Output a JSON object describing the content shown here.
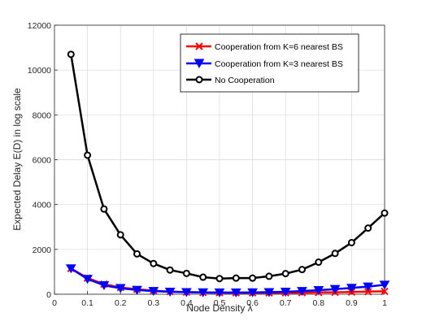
{
  "chart_data": {
    "type": "line",
    "xlabel": "Node Density λ",
    "ylabel": "Expected Delay E(D) in log scale",
    "xlim": [
      0,
      1
    ],
    "ylim": [
      0,
      12000
    ],
    "grid": true,
    "legend_position": "top-right",
    "x_ticks": [
      "0",
      "0.1",
      "0.2",
      "0.3",
      "0.4",
      "0.5",
      "0.6",
      "0.7",
      "0.8",
      "0.9",
      "1"
    ],
    "y_ticks": [
      "0",
      "2000",
      "4000",
      "6000",
      "8000",
      "10000",
      "12000"
    ],
    "x": [
      0.05,
      0.1,
      0.15,
      0.2,
      0.25,
      0.3,
      0.35,
      0.4,
      0.45,
      0.5,
      0.55,
      0.6,
      0.65,
      0.7,
      0.75,
      0.8,
      0.85,
      0.9,
      0.95,
      1.0
    ],
    "series": [
      {
        "name": "Cooperation from K=6 nearest BS",
        "color": "#ff0000",
        "marker": "x",
        "values": [
          1150,
          720,
          450,
          300,
          220,
          160,
          120,
          95,
          80,
          70,
          65,
          62,
          62,
          65,
          70,
          78,
          88,
          100,
          115,
          130
        ]
      },
      {
        "name": "Cooperation from K=3 nearest BS",
        "color": "#0000ff",
        "marker": "triangle-down",
        "values": [
          1150,
          680,
          400,
          270,
          190,
          140,
          110,
          90,
          80,
          75,
          75,
          80,
          90,
          110,
          140,
          180,
          230,
          280,
          340,
          420
        ]
      },
      {
        "name": "No Cooperation",
        "color": "#000000",
        "marker": "circle",
        "values": [
          10700,
          6200,
          3800,
          2650,
          1800,
          1370,
          1080,
          930,
          760,
          700,
          720,
          720,
          800,
          920,
          1100,
          1430,
          1820,
          2300,
          2950,
          3620
        ]
      }
    ]
  }
}
